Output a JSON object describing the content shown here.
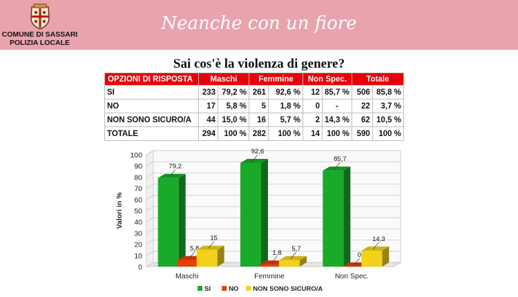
{
  "header": {
    "title": "Neanche con un fiore",
    "logo_line1": "COMUNE DI SASSARI",
    "logo_line2": "POLIZIA LOCALE"
  },
  "question": "Sai cos'è la violenza di genere?",
  "table": {
    "headers": [
      "OPZIONI DI RISPOSTA",
      "Maschi",
      "Femmine",
      "Non Spec.",
      "Totale"
    ],
    "rows": [
      {
        "label": "SI",
        "cells": [
          "233",
          "79,2 %",
          "261",
          "92,6 %",
          "12",
          "85,7 %",
          "506",
          "85,8 %"
        ]
      },
      {
        "label": "NO",
        "cells": [
          "17",
          "5,8 %",
          "5",
          "1,8 %",
          "0",
          "-",
          "22",
          "3,7 %"
        ]
      },
      {
        "label": "NON SONO SICURO/A",
        "cells": [
          "44",
          "15,0 %",
          "16",
          "5,7 %",
          "2",
          "14,3 %",
          "62",
          "10,5 %"
        ]
      },
      {
        "label": "TOTALE",
        "cells": [
          "294",
          "100 %",
          "282",
          "100 %",
          "14",
          "100 %",
          "590",
          "100 %"
        ]
      }
    ]
  },
  "chart_data": {
    "type": "bar",
    "categories": [
      "Maschi",
      "Femmine",
      "Non Spec."
    ],
    "series": [
      {
        "name": "SI",
        "values": [
          79.2,
          92.6,
          85.7
        ],
        "labels": [
          "79,2",
          "92,6",
          "85,7"
        ],
        "color": "#1aaa2a"
      },
      {
        "name": "NO",
        "values": [
          5.8,
          1.8,
          0
        ],
        "labels": [
          "5,8",
          "1,8",
          "0"
        ],
        "color": "#e8400a"
      },
      {
        "name": "NON SONO SICURO/A",
        "values": [
          15,
          5.7,
          14.3
        ],
        "labels": [
          "15",
          "5,7",
          "14,3"
        ],
        "color": "#f2d21a"
      }
    ],
    "ylabel": "Valori in %",
    "ylim": [
      0,
      100
    ],
    "yticks": [
      "0",
      "10",
      "20",
      "30",
      "40",
      "50",
      "60",
      "70",
      "80",
      "90",
      "100"
    ],
    "grid": true,
    "legend": "bottom",
    "style": "3d"
  }
}
